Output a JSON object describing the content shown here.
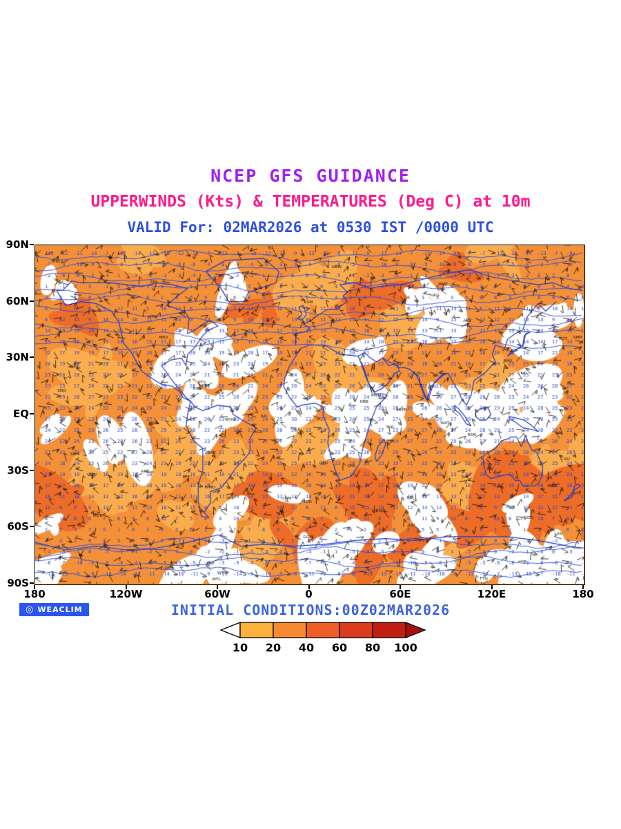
{
  "header": {
    "title": "NCEP GFS GUIDANCE",
    "subtitle": "UPPERWINDS (Kts) & TEMPERATURES (Deg C) at 10m",
    "valid": "VALID For: 02MAR2026 at 0530 IST /0000 UTC"
  },
  "colors": {
    "title": "#a020f0",
    "subtitle": "#ff1a8c",
    "valid": "#2f4fdf",
    "initial": "#3b63e3",
    "badge_bg": "#2b55ef",
    "badge_fg": "#ffffff"
  },
  "map": {
    "y_ticks": [
      "90N",
      "60N",
      "30N",
      "EQ",
      "30S",
      "60S",
      "90S"
    ],
    "x_ticks": [
      "180",
      "120W",
      "60W",
      "0",
      "60E",
      "120E",
      "180"
    ],
    "palette": {
      "base": "#f49038",
      "light": "#fbad4e",
      "calm": "#ffffff",
      "deep": "#ec6c28",
      "coast": "#2038c8",
      "contour": "#2a4be0",
      "temp": "#2646d2",
      "barb": "#0a0a0a",
      "station": "#111111"
    }
  },
  "branding": {
    "logo_text": "WEACLIM"
  },
  "footer": {
    "initial_conditions": "INITIAL CONDITIONS:00Z02MAR2026"
  },
  "colorbar": {
    "values": [
      10,
      20,
      40,
      60,
      80,
      100
    ],
    "colors": [
      "#fdb03c",
      "#f68a30",
      "#ee5f27",
      "#dd3b1e",
      "#c21d12"
    ],
    "below_color": "#ffffff",
    "above_color": "#a81010"
  },
  "chart_data": {
    "type": "heatmap",
    "title": "NCEP GFS GUIDANCE",
    "subtitle": "UPPERWINDS (Kts) & TEMPERATURES (Deg C) at 10m",
    "valid_time": "02MAR2026 at 0530 IST /0000 UTC",
    "initial_conditions": "00Z02MAR2026",
    "projection": "global lat-lon map",
    "x_axis": {
      "label": "longitude",
      "ticks": [
        "180",
        "120W",
        "60W",
        "0",
        "60E",
        "120E",
        "180"
      ],
      "range_deg": [
        -180,
        180
      ]
    },
    "y_axis": {
      "label": "latitude",
      "ticks": [
        "90N",
        "60N",
        "30N",
        "EQ",
        "30S",
        "60S",
        "90S"
      ],
      "range_deg": [
        -90,
        90
      ]
    },
    "shading": {
      "variable": "10 m wind speed (Kts)",
      "levels": [
        10,
        20,
        40,
        60,
        80,
        100
      ],
      "colors": [
        "#ffffff",
        "#fdb03c",
        "#f68a30",
        "#ee5f27",
        "#dd3b1e",
        "#c21d12",
        "#a81010"
      ]
    },
    "overlays": [
      "black wind barbs (Kts)",
      "blue temperature values (Deg C)",
      "blue coastlines and contour lines",
      "black station identifiers"
    ],
    "legend_position": "bottom-center",
    "grid": false
  }
}
